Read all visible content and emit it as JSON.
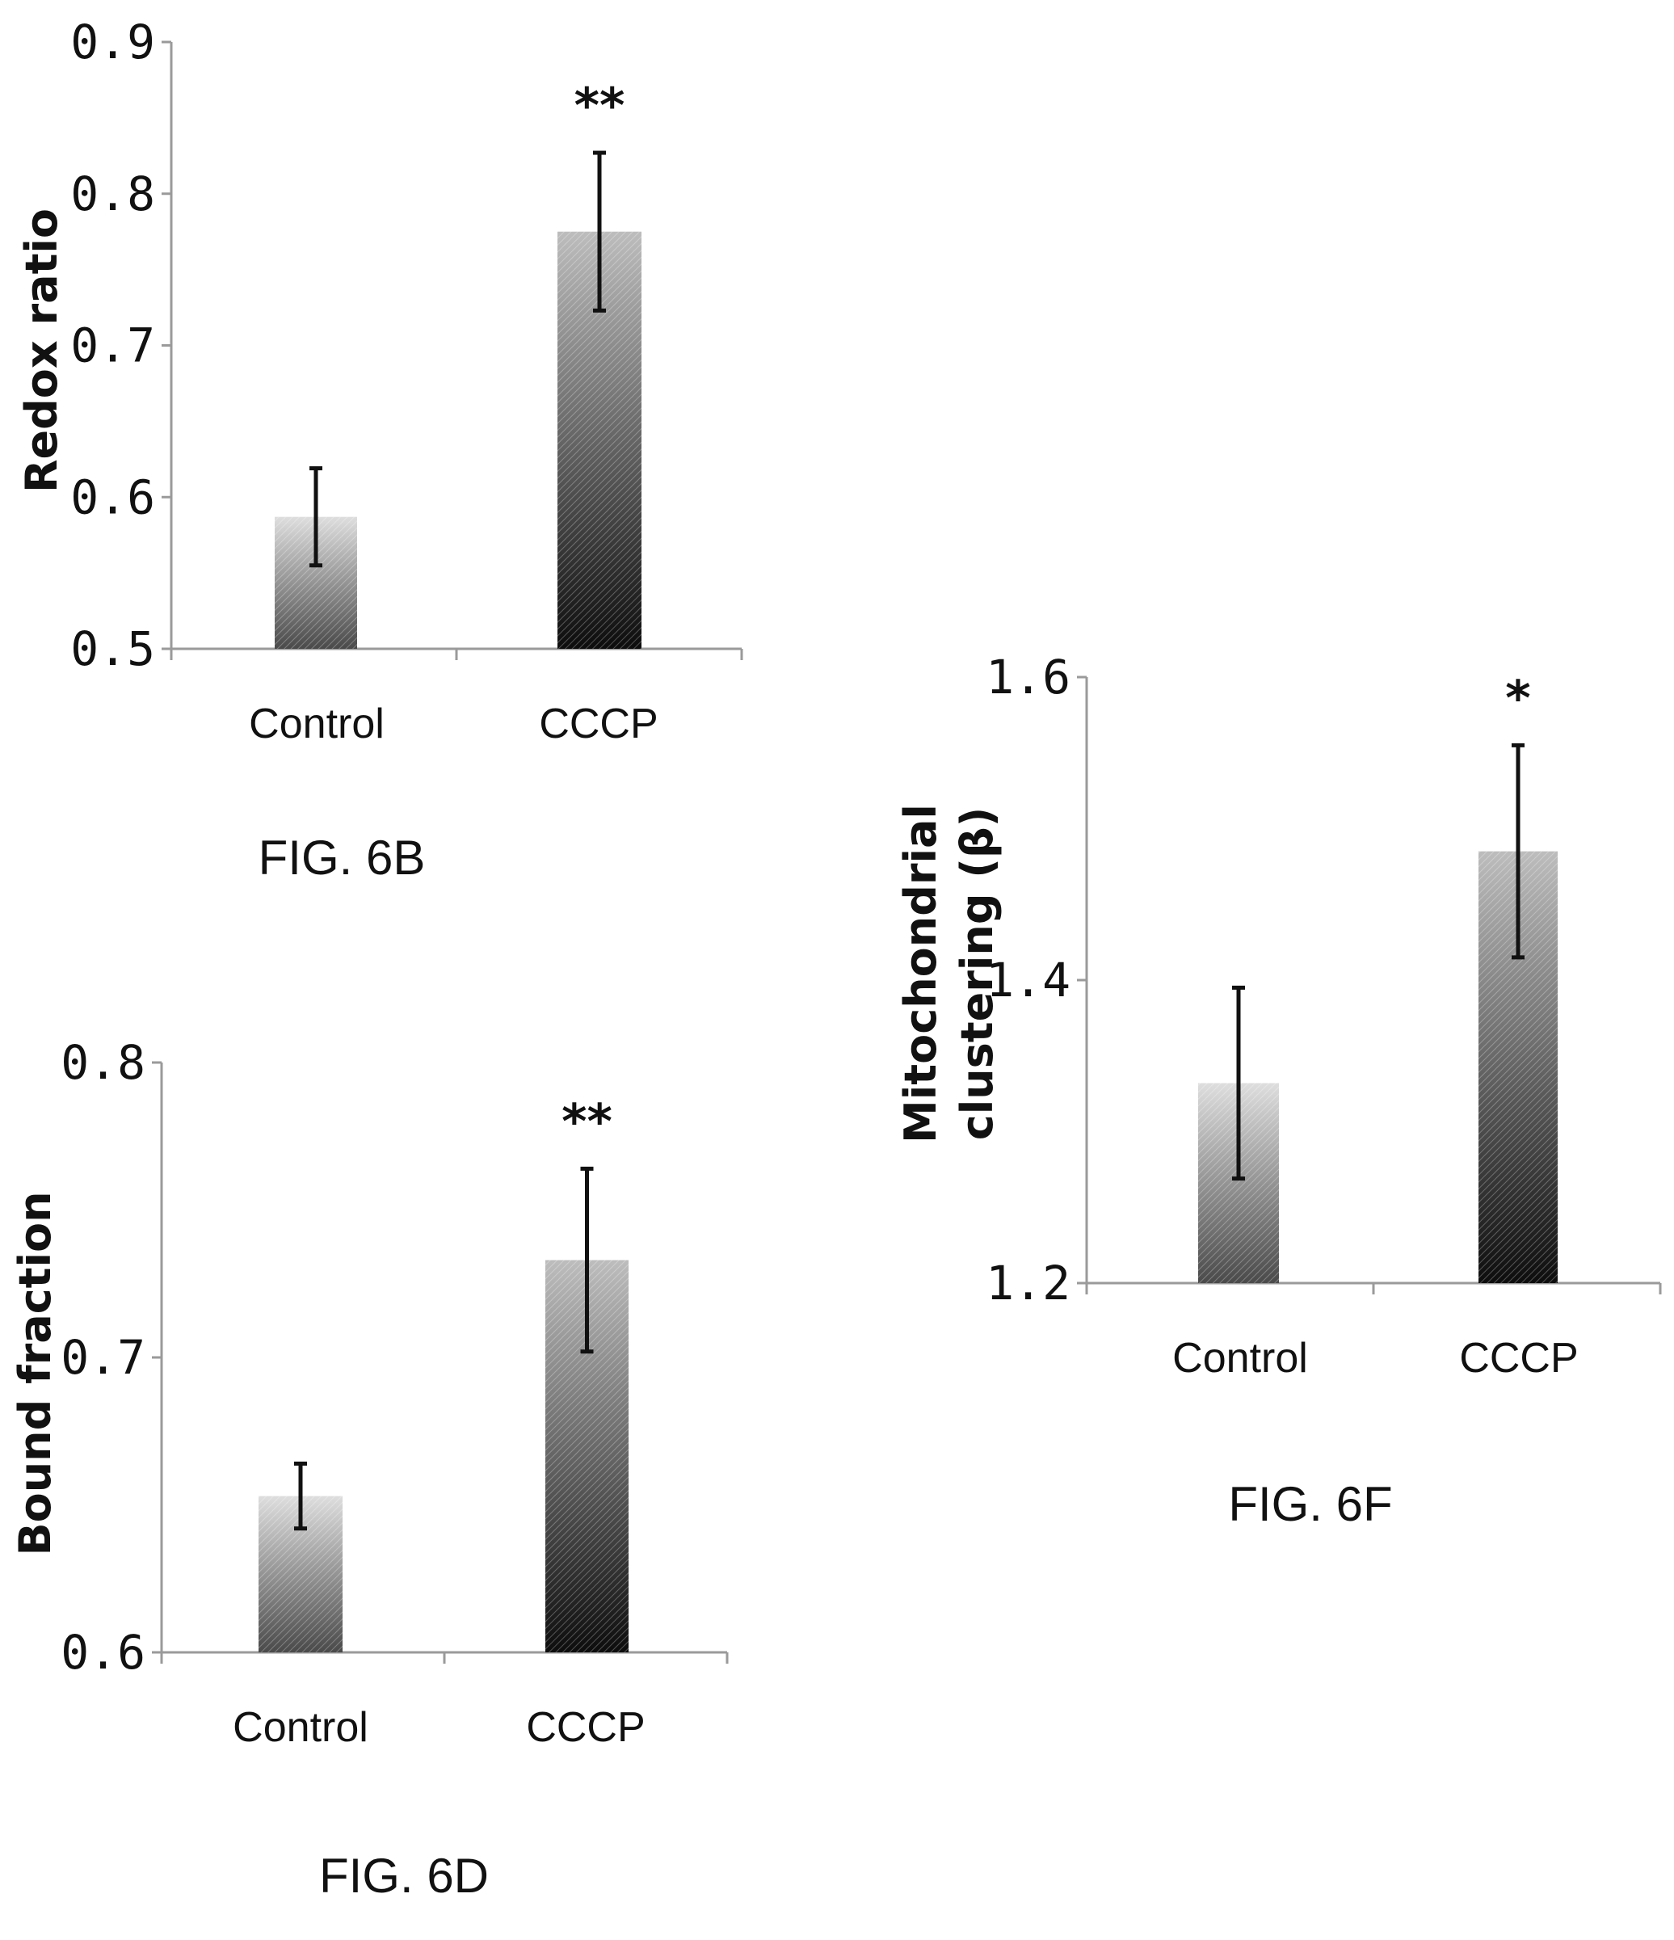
{
  "chart_data": [
    {
      "type": "bar",
      "figure_label": "FIG. 6B",
      "ylabel": "Redox ratio",
      "categories": [
        "Control",
        "CCCP"
      ],
      "values": [
        0.587,
        0.775
      ],
      "error": [
        0.032,
        0.052
      ],
      "significance": [
        "",
        "**"
      ],
      "ylim": [
        0.5,
        0.9
      ],
      "yticks": [
        0.5,
        0.6,
        0.7,
        0.8,
        0.9
      ],
      "ytick_labels": [
        "0.5",
        "0.6",
        "0.7",
        "0.8",
        "0.9"
      ],
      "grid": false,
      "legend": "none"
    },
    {
      "type": "bar",
      "figure_label": "FIG. 6D",
      "ylabel": "Bound fraction",
      "categories": [
        "Control",
        "CCCP"
      ],
      "values": [
        0.653,
        0.733
      ],
      "error": [
        0.011,
        0.031
      ],
      "significance": [
        "",
        "**"
      ],
      "ylim": [
        0.6,
        0.8
      ],
      "yticks": [
        0.6,
        0.7,
        0.8
      ],
      "ytick_labels": [
        "0.6",
        "0.7",
        "0.8"
      ],
      "grid": false,
      "legend": "none"
    },
    {
      "type": "bar",
      "figure_label": "FIG. 6F",
      "ylabel_lines": [
        "Mitochondrial",
        "clustering (β)"
      ],
      "categories": [
        "Control",
        "CCCP"
      ],
      "values": [
        1.332,
        1.485
      ],
      "error": [
        0.063,
        0.07
      ],
      "significance": [
        "",
        "*"
      ],
      "ylim": [
        1.2,
        1.6
      ],
      "yticks": [
        1.2,
        1.4,
        1.6
      ],
      "ytick_labels": [
        "1.2",
        "1.4",
        "1.6"
      ],
      "grid": false,
      "legend": "none"
    }
  ],
  "colors": {
    "axis": "#9a9a9a",
    "control_bar_top": "#dedede",
    "control_bar_bottom": "#4a4a4a",
    "cccp_bar_top": "#bdbdbd",
    "cccp_bar_bottom": "#0d0d0d",
    "error_bar": "#111111"
  }
}
